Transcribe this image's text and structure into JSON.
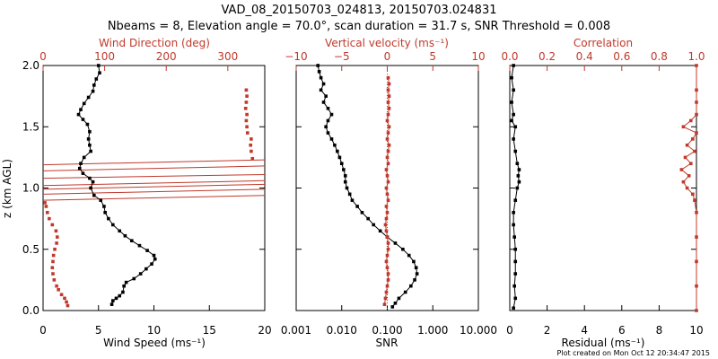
{
  "title_line1": "VAD_08_20150703_024813, 20150703.024831",
  "title_line2": "Nbeams = 8, Elevation angle = 70.0°, scan duration = 31.7 s, SNR Threshold = 0.008",
  "credit": "Plot created on Mon Oct 12 20:34:47 2015",
  "colors": {
    "black": "#000000",
    "red": "#c0392b"
  },
  "chart_data": [
    {
      "type": "scatter",
      "name": "wind",
      "ylabel": "z (km AGL)",
      "ylim": [
        0,
        2
      ],
      "yticks": [
        "0.0",
        "0.5",
        "1.0",
        "1.5",
        "2.0"
      ],
      "yvalues": [
        0,
        0.5,
        1.0,
        1.5,
        2.0
      ],
      "bottom_axis": {
        "label": "Wind Speed (ms⁻¹)",
        "range": [
          0,
          20
        ],
        "ticks": [
          "0",
          "5",
          "10",
          "15",
          "20"
        ],
        "values": [
          0,
          5,
          10,
          15,
          20
        ]
      },
      "top_axis": {
        "label": "Wind Direction (deg)",
        "range": [
          0,
          360
        ],
        "ticks": [
          "0",
          "100",
          "200",
          "300"
        ],
        "values": [
          0,
          100,
          200,
          300
        ]
      },
      "series": [
        {
          "name": "Wind Speed",
          "color": "black",
          "axis": "bottom",
          "points": [
            [
              6.2,
              0.05
            ],
            [
              6.3,
              0.08
            ],
            [
              6.6,
              0.1
            ],
            [
              6.9,
              0.12
            ],
            [
              7.2,
              0.15
            ],
            [
              7.3,
              0.2
            ],
            [
              7.5,
              0.23
            ],
            [
              8.2,
              0.26
            ],
            [
              8.8,
              0.3
            ],
            [
              9.3,
              0.34
            ],
            [
              9.8,
              0.38
            ],
            [
              10.1,
              0.42
            ],
            [
              10.0,
              0.45
            ],
            [
              9.4,
              0.49
            ],
            [
              8.7,
              0.53
            ],
            [
              8.0,
              0.57
            ],
            [
              7.4,
              0.61
            ],
            [
              6.9,
              0.65
            ],
            [
              6.3,
              0.7
            ],
            [
              5.9,
              0.75
            ],
            [
              5.6,
              0.8
            ],
            [
              5.5,
              0.85
            ],
            [
              5.2,
              0.9
            ],
            [
              4.6,
              0.94
            ],
            [
              4.3,
              1.0
            ],
            [
              4.5,
              1.05
            ],
            [
              4.2,
              1.08
            ],
            [
              3.6,
              1.12
            ],
            [
              3.3,
              1.16
            ],
            [
              3.4,
              1.2
            ],
            [
              3.7,
              1.25
            ],
            [
              4.3,
              1.3
            ],
            [
              4.2,
              1.35
            ],
            [
              4.1,
              1.4
            ],
            [
              4.2,
              1.46
            ],
            [
              4.0,
              1.52
            ],
            [
              3.6,
              1.56
            ],
            [
              3.2,
              1.6
            ],
            [
              3.4,
              1.64
            ],
            [
              3.7,
              1.69
            ],
            [
              4.1,
              1.74
            ],
            [
              4.5,
              1.79
            ],
            [
              4.6,
              1.84
            ],
            [
              4.8,
              1.89
            ],
            [
              5.1,
              1.94
            ],
            [
              5.0,
              2.0
            ]
          ]
        },
        {
          "name": "Wind Direction",
          "color": "red",
          "axis": "top",
          "points": [
            [
              40,
              0.04
            ],
            [
              38,
              0.07
            ],
            [
              35,
              0.1
            ],
            [
              30,
              0.13
            ],
            [
              25,
              0.17
            ],
            [
              22,
              0.2
            ],
            [
              18,
              0.25
            ],
            [
              16,
              0.3
            ],
            [
              15,
              0.35
            ],
            [
              16,
              0.4
            ],
            [
              17,
              0.45
            ],
            [
              19,
              0.5
            ],
            [
              22,
              0.55
            ],
            [
              23,
              0.6
            ],
            [
              21,
              0.65
            ],
            [
              15,
              0.7
            ],
            [
              10,
              0.75
            ],
            [
              7,
              0.8
            ],
            [
              5,
              0.85
            ],
            [
              3,
              0.88
            ],
            [
              340,
              1.24
            ],
            [
              338,
              1.3
            ],
            [
              337,
              1.35
            ],
            [
              338,
              1.4
            ],
            [
              332,
              1.45
            ],
            [
              331,
              1.5
            ],
            [
              330,
              1.55
            ],
            [
              331,
              1.6
            ],
            [
              329,
              1.65
            ],
            [
              330,
              1.7
            ],
            [
              331,
              1.75
            ],
            [
              330,
              1.8
            ]
          ]
        }
      ],
      "horizontal_lines": [
        {
          "color": "red",
          "y_left": 0.9,
          "y_right": 0.94
        },
        {
          "color": "red",
          "y_left": 0.95,
          "y_right": 0.99
        },
        {
          "color": "red",
          "y_left": 0.99,
          "y_right": 1.03
        },
        {
          "color": "red",
          "y_left": 1.02,
          "y_right": 1.06
        },
        {
          "color": "red",
          "y_left": 1.08,
          "y_right": 1.11
        },
        {
          "color": "red",
          "y_left": 1.14,
          "y_right": 1.18
        },
        {
          "color": "red",
          "y_left": 1.19,
          "y_right": 1.23
        }
      ]
    },
    {
      "type": "scatter",
      "name": "vertical_snr",
      "ylim": [
        0,
        2
      ],
      "bottom_axis": {
        "label": "SNR",
        "scale": "log",
        "range": [
          0.001,
          10
        ],
        "ticks": [
          "0.001",
          "0.010",
          "0.100",
          "1.000",
          "10.000"
        ],
        "values": [
          0.001,
          0.01,
          0.1,
          1,
          10
        ]
      },
      "top_axis": {
        "label": "Vertical velocity (ms⁻¹)",
        "range": [
          -10,
          10
        ],
        "ticks": [
          "−10",
          "−5",
          "0",
          "5",
          "10"
        ],
        "values": [
          -10,
          -5,
          0,
          5,
          10
        ]
      },
      "zero_line": {
        "axis": "top",
        "value": 0,
        "color": "red"
      },
      "series": [
        {
          "name": "SNR",
          "color": "black",
          "axis": "bottom",
          "points": [
            [
              0.13,
              0.03
            ],
            [
              0.15,
              0.06
            ],
            [
              0.18,
              0.1
            ],
            [
              0.25,
              0.15
            ],
            [
              0.33,
              0.2
            ],
            [
              0.4,
              0.25
            ],
            [
              0.45,
              0.3
            ],
            [
              0.43,
              0.35
            ],
            [
              0.38,
              0.4
            ],
            [
              0.3,
              0.45
            ],
            [
              0.22,
              0.5
            ],
            [
              0.15,
              0.55
            ],
            [
              0.1,
              0.6
            ],
            [
              0.07,
              0.65
            ],
            [
              0.05,
              0.7
            ],
            [
              0.038,
              0.75
            ],
            [
              0.028,
              0.8
            ],
            [
              0.022,
              0.85
            ],
            [
              0.017,
              0.9
            ],
            [
              0.015,
              0.95
            ],
            [
              0.013,
              1.0
            ],
            [
              0.012,
              1.05
            ],
            [
              0.012,
              1.1
            ],
            [
              0.011,
              1.15
            ],
            [
              0.01,
              1.2
            ],
            [
              0.009,
              1.25
            ],
            [
              0.008,
              1.3
            ],
            [
              0.007,
              1.35
            ],
            [
              0.006,
              1.4
            ],
            [
              0.005,
              1.45
            ],
            [
              0.0045,
              1.5
            ],
            [
              0.005,
              1.55
            ],
            [
              0.006,
              1.6
            ],
            [
              0.005,
              1.65
            ],
            [
              0.004,
              1.7
            ],
            [
              0.0045,
              1.75
            ],
            [
              0.0035,
              1.8
            ],
            [
              0.004,
              1.85
            ],
            [
              0.0035,
              1.9
            ],
            [
              0.0032,
              1.95
            ],
            [
              0.003,
              2.0
            ]
          ]
        },
        {
          "name": "Vertical velocity",
          "color": "red",
          "axis": "top",
          "points": [
            [
              -0.3,
              0.05
            ],
            [
              -0.2,
              0.1
            ],
            [
              -0.1,
              0.15
            ],
            [
              0.0,
              0.2
            ],
            [
              0.1,
              0.25
            ],
            [
              0.1,
              0.3
            ],
            [
              0.0,
              0.35
            ],
            [
              -0.1,
              0.4
            ],
            [
              0.0,
              0.45
            ],
            [
              0.1,
              0.5
            ],
            [
              0.1,
              0.55
            ],
            [
              0.0,
              0.6
            ],
            [
              -0.1,
              0.65
            ],
            [
              -0.2,
              0.7
            ],
            [
              -0.1,
              0.75
            ],
            [
              0.0,
              0.8
            ],
            [
              -0.1,
              0.85
            ],
            [
              0.1,
              0.9
            ],
            [
              0.0,
              0.95
            ],
            [
              -0.1,
              1.0
            ],
            [
              0.1,
              1.05
            ],
            [
              0.0,
              1.1
            ],
            [
              -0.1,
              1.15
            ],
            [
              0.1,
              1.2
            ],
            [
              0.0,
              1.25
            ],
            [
              0.1,
              1.3
            ],
            [
              0.2,
              1.35
            ],
            [
              0.0,
              1.4
            ],
            [
              0.1,
              1.45
            ],
            [
              0.2,
              1.5
            ],
            [
              0.0,
              1.55
            ],
            [
              0.1,
              1.6
            ],
            [
              0.2,
              1.65
            ],
            [
              0.1,
              1.7
            ],
            [
              0.2,
              1.75
            ],
            [
              0.1,
              1.8
            ],
            [
              0.2,
              1.85
            ],
            [
              0.1,
              1.9
            ]
          ]
        }
      ]
    },
    {
      "type": "line",
      "name": "residual_correlation",
      "ylim": [
        0,
        2
      ],
      "bottom_axis": {
        "label": "Residual (ms⁻¹)",
        "range": [
          0,
          10
        ],
        "ticks": [
          "0",
          "2",
          "4",
          "6",
          "8",
          "10"
        ],
        "values": [
          0,
          2,
          4,
          6,
          8,
          10
        ]
      },
      "top_axis": {
        "label": "Correlation",
        "range": [
          0,
          1
        ],
        "ticks": [
          "0.0",
          "0.2",
          "0.4",
          "0.6",
          "0.8",
          "1.0"
        ],
        "values": [
          0,
          0.2,
          0.4,
          0.6,
          0.8,
          1.0
        ]
      },
      "series": [
        {
          "name": "Residual",
          "color": "black",
          "axis": "bottom",
          "points": [
            [
              0.2,
              0.02
            ],
            [
              0.3,
              0.1
            ],
            [
              0.25,
              0.2
            ],
            [
              0.3,
              0.3
            ],
            [
              0.3,
              0.4
            ],
            [
              0.3,
              0.5
            ],
            [
              0.25,
              0.6
            ],
            [
              0.2,
              0.7
            ],
            [
              0.2,
              0.8
            ],
            [
              0.3,
              0.9
            ],
            [
              0.4,
              1.0
            ],
            [
              0.5,
              1.05
            ],
            [
              0.45,
              1.1
            ],
            [
              0.5,
              1.15
            ],
            [
              0.4,
              1.2
            ],
            [
              0.3,
              1.3
            ],
            [
              0.2,
              1.4
            ],
            [
              0.3,
              1.5
            ],
            [
              0.1,
              1.55
            ],
            [
              0.2,
              1.6
            ],
            [
              0.1,
              1.7
            ],
            [
              0.2,
              1.8
            ],
            [
              0.1,
              1.9
            ],
            [
              0.2,
              2.0
            ]
          ]
        },
        {
          "name": "Correlation",
          "color": "red",
          "axis": "top",
          "points": [
            [
              1.0,
              0.0
            ],
            [
              1.0,
              0.2
            ],
            [
              1.0,
              0.4
            ],
            [
              1.0,
              0.6
            ],
            [
              1.0,
              0.8
            ],
            [
              0.99,
              0.9
            ],
            [
              0.98,
              0.95
            ],
            [
              0.95,
              1.0
            ],
            [
              0.93,
              1.05
            ],
            [
              0.96,
              1.1
            ],
            [
              0.92,
              1.15
            ],
            [
              0.97,
              1.2
            ],
            [
              0.94,
              1.25
            ],
            [
              0.99,
              1.3
            ],
            [
              0.95,
              1.35
            ],
            [
              0.98,
              1.4
            ],
            [
              1.0,
              1.45
            ],
            [
              0.93,
              1.5
            ],
            [
              0.97,
              1.55
            ],
            [
              1.0,
              1.6
            ],
            [
              1.0,
              1.7
            ],
            [
              1.0,
              1.8
            ],
            [
              1.0,
              2.0
            ]
          ]
        }
      ]
    }
  ]
}
